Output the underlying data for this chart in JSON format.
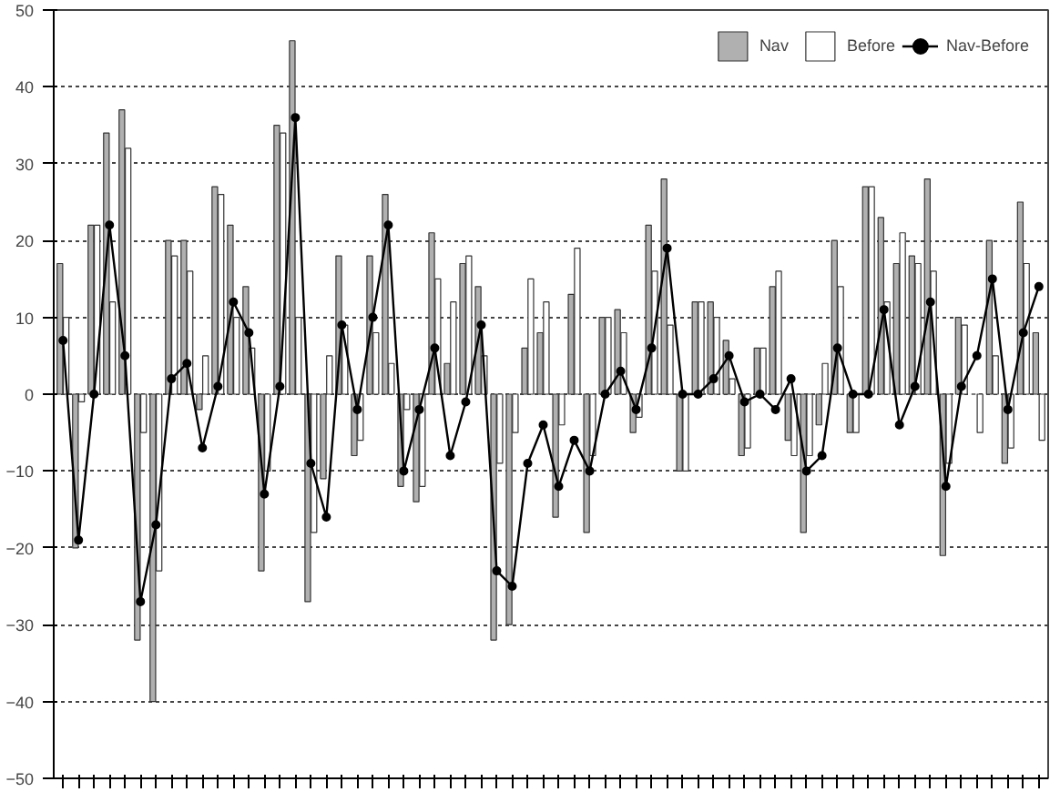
{
  "chart_data": {
    "type": "bar",
    "categories": [
      null,
      null,
      null,
      null,
      null,
      null,
      null,
      null,
      null,
      null,
      null,
      null,
      null,
      null,
      null,
      null,
      null,
      null,
      null,
      null,
      null,
      null,
      null,
      null,
      null,
      null,
      null,
      null,
      null,
      null,
      null,
      null,
      null,
      null,
      null,
      null,
      null,
      null,
      null,
      null,
      null,
      null,
      null,
      null,
      null,
      null,
      null,
      null,
      null,
      null,
      null,
      null,
      null,
      null,
      null,
      null,
      null,
      null,
      null,
      null,
      null,
      null,
      null,
      null
    ],
    "series": [
      {
        "name": "Nav",
        "color": "#b0b0b0",
        "values": [
          17,
          -20,
          22,
          34,
          37,
          -32,
          -40,
          20,
          20,
          -2,
          27,
          22,
          14,
          -23,
          35,
          46,
          -27,
          -11,
          18,
          -8,
          18,
          26,
          -12,
          -14,
          21,
          4,
          17,
          14,
          -32,
          -30,
          6,
          8,
          -16,
          13,
          -18,
          10,
          11,
          -5,
          22,
          28,
          -10,
          12,
          12,
          7,
          -8,
          6,
          14,
          -6,
          -18,
          -4,
          20,
          -5,
          27,
          23,
          17,
          18,
          28,
          -21,
          10,
          0,
          20,
          -9,
          25,
          8
        ]
      },
      {
        "name": "Before",
        "color": "#ffffff",
        "values": [
          10,
          -1,
          22,
          12,
          32,
          -5,
          -23,
          18,
          16,
          5,
          26,
          10,
          6,
          -10,
          34,
          10,
          -18,
          5,
          9,
          -6,
          8,
          4,
          -2,
          -12,
          15,
          12,
          18,
          5,
          -9,
          -5,
          15,
          12,
          -4,
          19,
          -8,
          10,
          8,
          -3,
          16,
          9,
          -10,
          12,
          10,
          2,
          -7,
          6,
          16,
          -8,
          -8,
          4,
          14,
          -5,
          27,
          12,
          21,
          17,
          16,
          -9,
          9,
          -5,
          5,
          -7,
          17,
          -6
        ]
      },
      {
        "name": "Nav-Before",
        "color": "#000000",
        "type": "line",
        "marker": "circle",
        "values": [
          7,
          -19,
          0,
          22,
          5,
          -27,
          -17,
          2,
          4,
          -7,
          1,
          12,
          8,
          -13,
          1,
          36,
          -9,
          -16,
          9,
          -2,
          10,
          22,
          -10,
          -2,
          6,
          -8,
          -1,
          9,
          -23,
          -25,
          -9,
          -4,
          -12,
          -6,
          -10,
          0,
          3,
          -2,
          6,
          19,
          0,
          0,
          2,
          5,
          -1,
          0,
          -2,
          2,
          -10,
          -8,
          6,
          0,
          0,
          11,
          -4,
          1,
          12,
          -12,
          1,
          5,
          15,
          -2,
          8,
          14
        ]
      }
    ],
    "ylim": [
      -50,
      50
    ],
    "yticks": [
      -50,
      -40,
      -30,
      -20,
      -10,
      0,
      10,
      20,
      30,
      40,
      50
    ],
    "grid": "y",
    "legend": "top right"
  }
}
